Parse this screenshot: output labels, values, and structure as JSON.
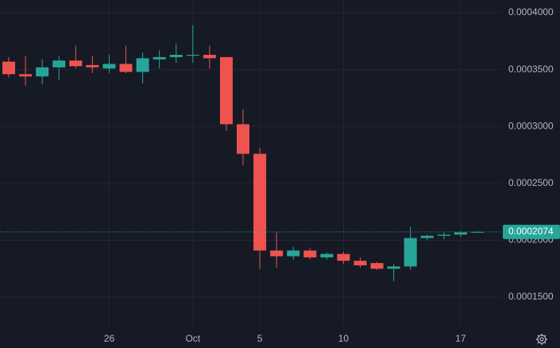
{
  "chart_data": {
    "type": "candlestick",
    "categories": [
      null,
      null,
      null,
      null,
      null,
      null,
      "26",
      null,
      null,
      null,
      null,
      "Oct",
      null,
      null,
      null,
      "5",
      null,
      null,
      null,
      null,
      "10",
      null,
      null,
      null,
      null,
      null,
      null,
      "17",
      null
    ],
    "series": {
      "open": [
        0.000357,
        0.000346,
        0.000344,
        0.000352,
        0.000358,
        0.000354,
        0.000351,
        0.000355,
        0.000348,
        0.000359,
        0.000361,
        0.000363,
        0.000363,
        0.000361,
        0.000302,
        0.000276,
        0.000191,
        0.000186,
        0.000191,
        0.000185,
        0.000188,
        0.000182,
        0.00018,
        0.000175,
        0.000177,
        0.000202,
        0.000204,
        0.000205,
        0.000207
      ],
      "high": [
        0.000361,
        0.000362,
        0.000359,
        0.000362,
        0.000371,
        0.000362,
        0.000363,
        0.000371,
        0.000365,
        0.000367,
        0.000373,
        0.000389,
        0.000371,
        0.000361,
        0.000315,
        0.000281,
        0.000207,
        0.000194,
        0.000193,
        0.000189,
        0.00019,
        0.000185,
        0.000181,
        0.000179,
        0.000212,
        0.000205,
        0.000207,
        0.000208,
        0.000208
      ],
      "low": [
        0.000343,
        0.000336,
        0.000337,
        0.000341,
        0.000351,
        0.000347,
        0.000347,
        0.000347,
        0.000338,
        0.000351,
        0.000356,
        0.000356,
        0.000351,
        0.000296,
        0.000266,
        0.000175,
        0.000176,
        0.000183,
        0.000183,
        0.000183,
        0.000179,
        0.000176,
        0.000174,
        0.000164,
        0.000174,
        0.0002,
        0.000201,
        0.000203,
        0.000207
      ],
      "close": [
        0.000346,
        0.000344,
        0.000352,
        0.000358,
        0.000353,
        0.000352,
        0.000355,
        0.000348,
        0.00036,
        0.000361,
        0.000363,
        0.000363,
        0.00036,
        0.000302,
        0.000276,
        0.000191,
        0.000186,
        0.000191,
        0.000185,
        0.000188,
        0.000182,
        0.000178,
        0.000175,
        0.000177,
        0.000202,
        0.000204,
        0.000205,
        0.000207,
        0.0002074
      ]
    },
    "up_color": "#26a69a",
    "down_color": "#ef5350",
    "ylim": [
      0.0001249,
      0.0004112
    ],
    "yticks": [
      {
        "value": 0.0004,
        "label": "0.0004000"
      },
      {
        "value": 0.00035,
        "label": "0.0003500"
      },
      {
        "value": 0.0003,
        "label": "0.0003000"
      },
      {
        "value": 0.00025,
        "label": "0.0002500"
      },
      {
        "value": 0.0002,
        "label": "0.0002000"
      },
      {
        "value": 0.00015,
        "label": "0.0001500"
      }
    ],
    "grid": true,
    "last_price": {
      "value": 0.0002074,
      "label": "0.0002074",
      "color": "#26a69a"
    }
  }
}
